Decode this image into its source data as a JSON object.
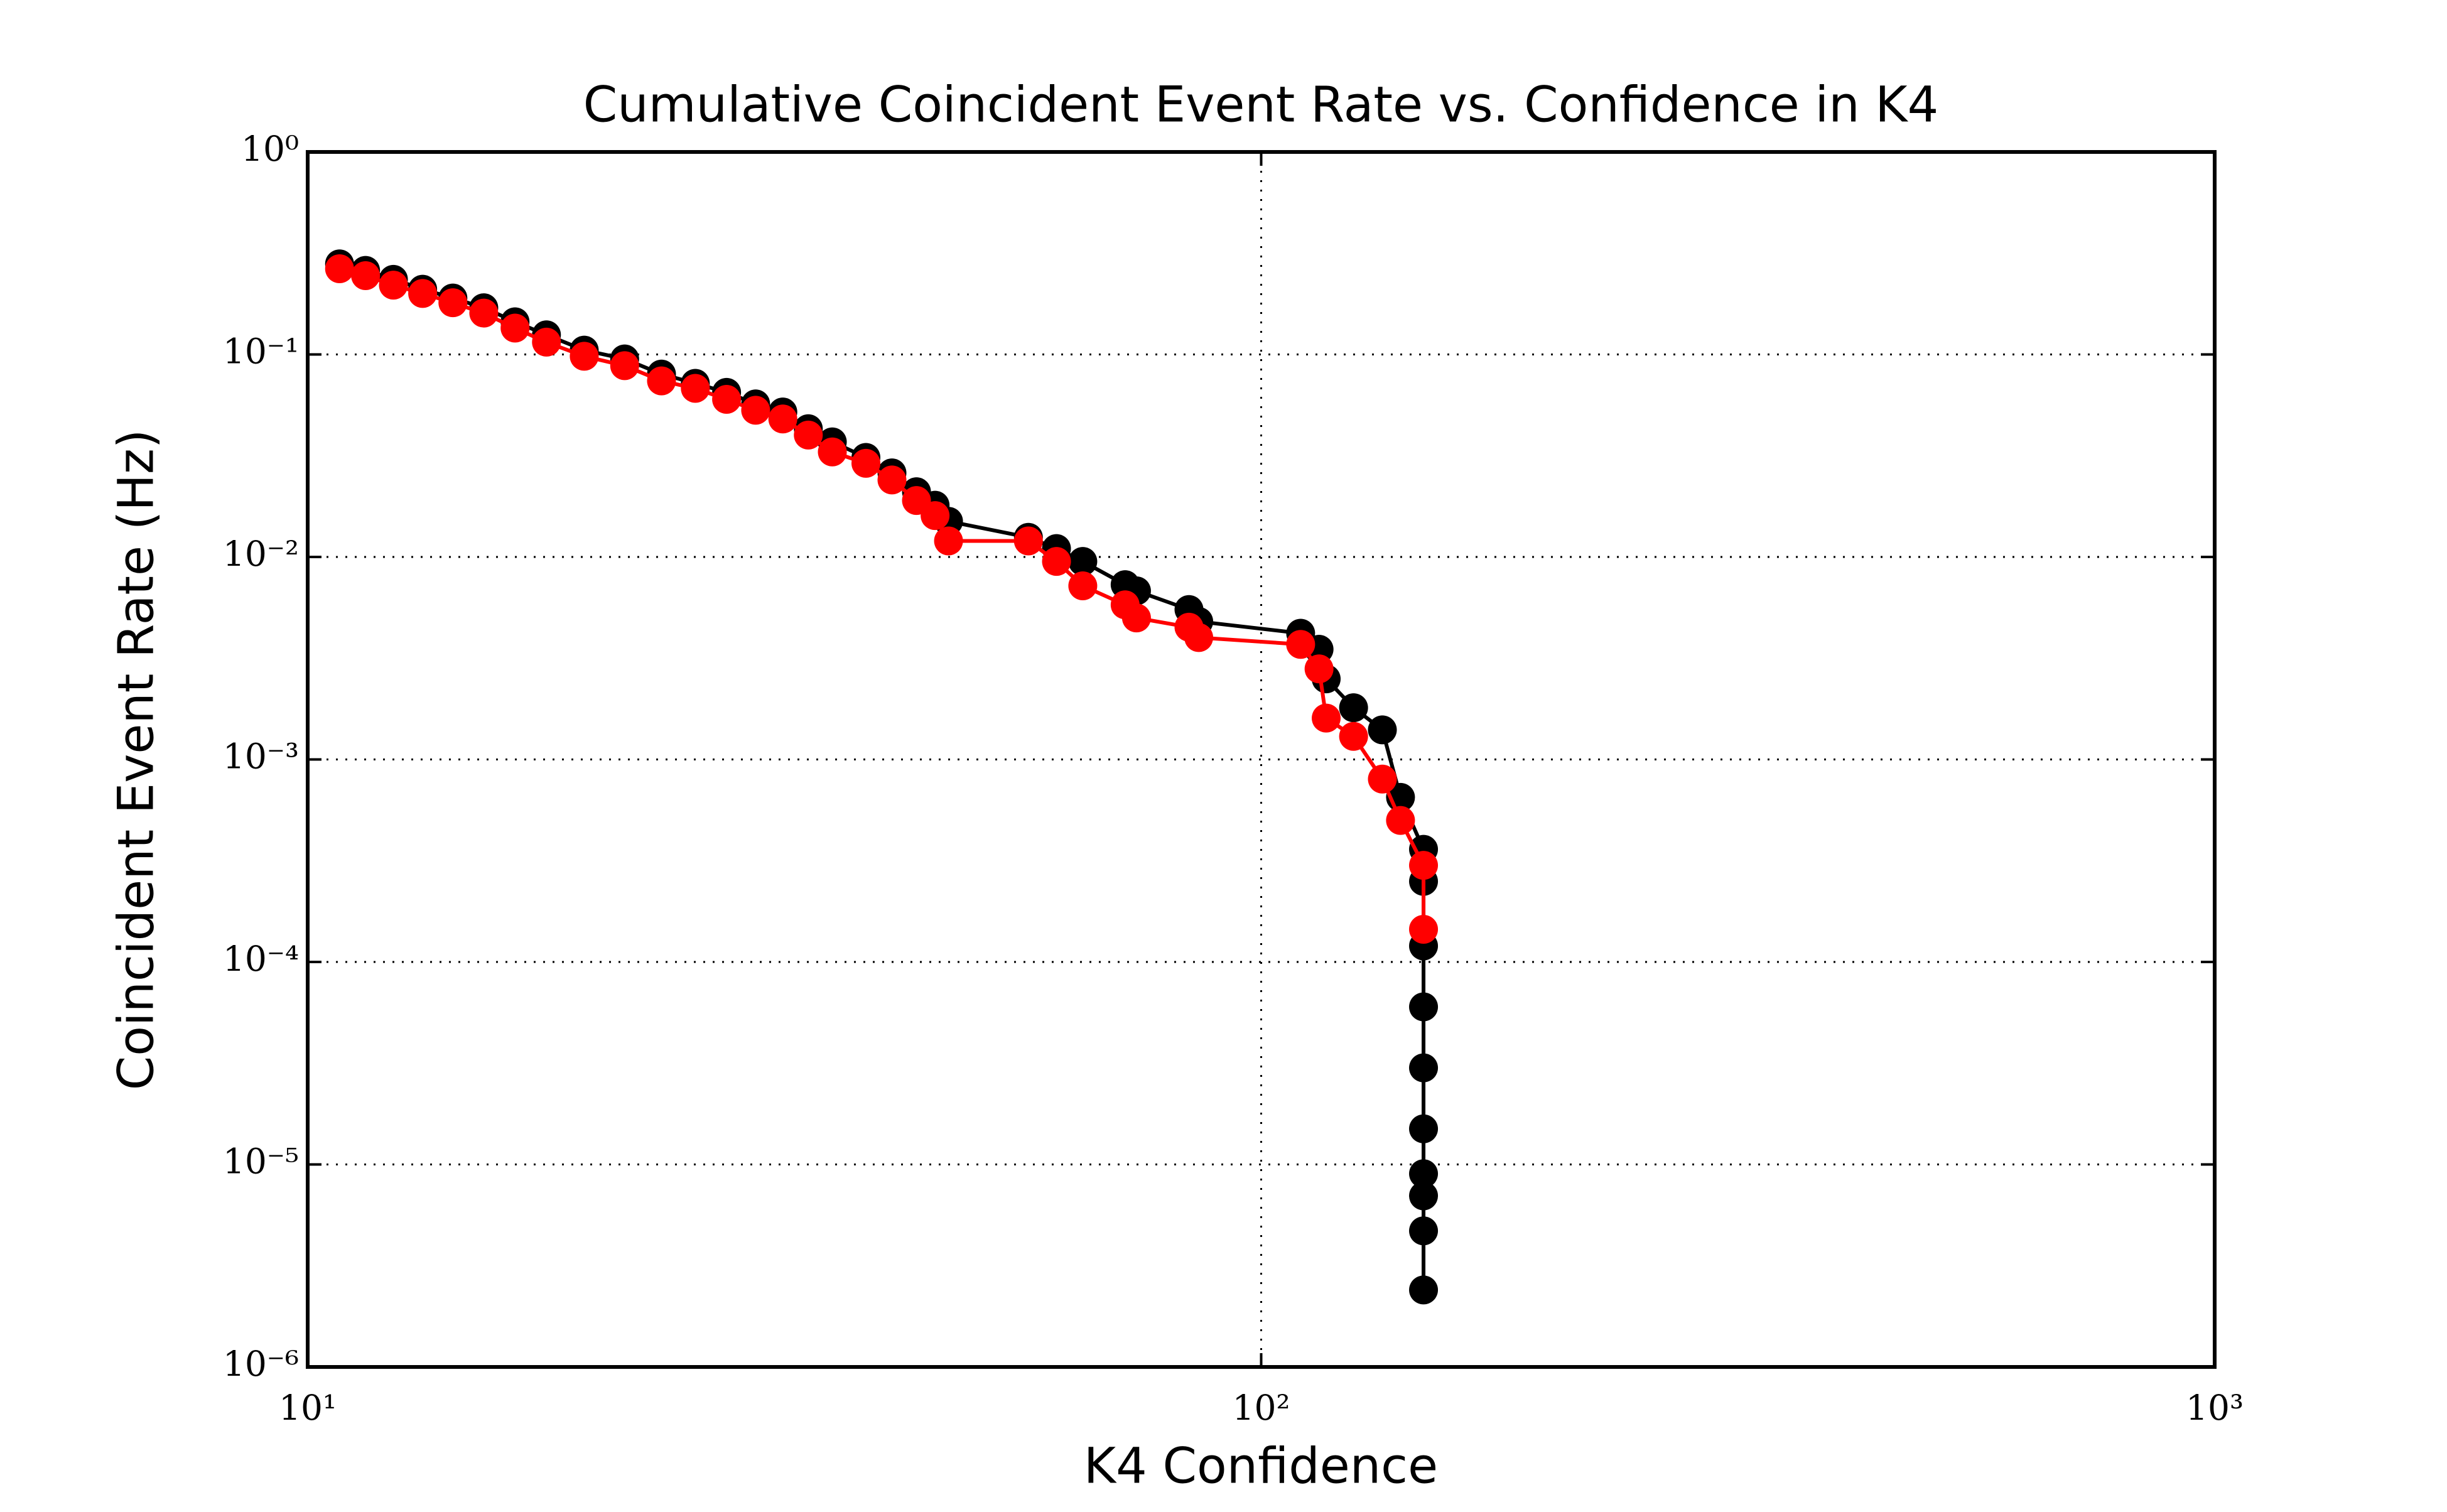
{
  "chart_data": {
    "type": "line",
    "title": "Cumulative Coincident Event Rate vs. Confidence in K4",
    "x_label": "K4 Confidence",
    "y_label": "Coincident Event Rate (Hz)",
    "xscale": "log",
    "yscale": "log",
    "grid": true,
    "xlim": [
      10,
      1000
    ],
    "ylim": [
      1e-06,
      1
    ],
    "xticks": [
      {
        "value": 10,
        "label": "10¹"
      },
      {
        "value": 100,
        "label": "10²"
      },
      {
        "value": 1000,
        "label": "10³"
      }
    ],
    "yticks": [
      {
        "value": 1e-06,
        "label": "10⁻⁶"
      },
      {
        "value": 1e-05,
        "label": "10⁻⁵"
      },
      {
        "value": 0.0001,
        "label": "10⁻⁴"
      },
      {
        "value": 0.001,
        "label": "10⁻³"
      },
      {
        "value": 0.01,
        "label": "10⁻²"
      },
      {
        "value": 0.1,
        "label": "10⁻¹"
      },
      {
        "value": 1,
        "label": "10⁰"
      }
    ],
    "series": [
      {
        "color": "#000000",
        "x": [
          10.8,
          11.5,
          12.3,
          13.2,
          14.2,
          15.3,
          16.5,
          17.8,
          19.5,
          21.5,
          23.5,
          25.5,
          27.5,
          29.5,
          31.5,
          33.5,
          35.5,
          38.5,
          41,
          43.5,
          45.5,
          47,
          57,
          61,
          65,
          72,
          74,
          84,
          86,
          110,
          115,
          117,
          125,
          134,
          140,
          148,
          148,
          148,
          148,
          148,
          148,
          148,
          148,
          148,
          148
        ],
        "values": [
          0.28,
          0.26,
          0.235,
          0.21,
          0.19,
          0.17,
          0.145,
          0.125,
          0.105,
          0.095,
          0.08,
          0.072,
          0.065,
          0.057,
          0.052,
          0.043,
          0.037,
          0.031,
          0.026,
          0.021,
          0.018,
          0.015,
          0.0125,
          0.011,
          0.0095,
          0.0073,
          0.0068,
          0.0055,
          0.0048,
          0.0042,
          0.0035,
          0.0025,
          0.0018,
          0.0014,
          0.00065,
          0.00036,
          0.00025,
          0.00012,
          6e-05,
          3e-05,
          1.5e-05,
          9e-06,
          7e-06,
          4.7e-06,
          2.4e-06
        ]
      },
      {
        "color": "#ff0000",
        "x": [
          10.8,
          11.5,
          12.3,
          13.2,
          14.2,
          15.3,
          16.5,
          17.8,
          19.5,
          21.5,
          23.5,
          25.5,
          27.5,
          29.5,
          31.5,
          33.5,
          35.5,
          38.5,
          41,
          43.5,
          45.5,
          47,
          57,
          61,
          65,
          72,
          74,
          84,
          86,
          110,
          115,
          117,
          125,
          134,
          140,
          148,
          148
        ],
        "values": [
          0.265,
          0.245,
          0.22,
          0.2,
          0.18,
          0.16,
          0.135,
          0.115,
          0.098,
          0.088,
          0.074,
          0.068,
          0.06,
          0.053,
          0.048,
          0.04,
          0.033,
          0.029,
          0.024,
          0.019,
          0.016,
          0.012,
          0.012,
          0.0095,
          0.0072,
          0.0058,
          0.005,
          0.0045,
          0.004,
          0.0037,
          0.0028,
          0.0016,
          0.0013,
          0.0008,
          0.0005,
          0.0003,
          0.000145
        ]
      }
    ]
  }
}
